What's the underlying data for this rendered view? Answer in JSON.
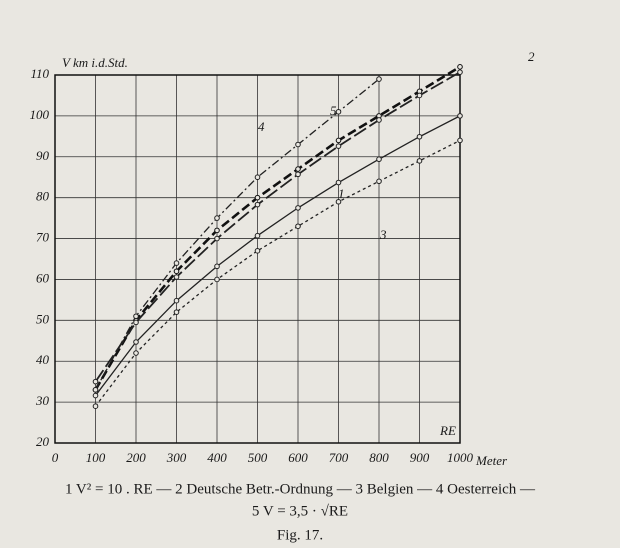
{
  "chart_data": {
    "type": "line",
    "ylabel": "V km i.d.Std.",
    "xlabel": "Meter",
    "xlabel2": "RE",
    "x": [
      100,
      200,
      300,
      400,
      500,
      600,
      700,
      800,
      900,
      1000
    ],
    "series": [
      {
        "name": "1",
        "color": "#222222",
        "style": "solid",
        "values": [
          31.6,
          44.7,
          54.8,
          63.2,
          70.7,
          77.5,
          83.7,
          89.4,
          94.9,
          100
        ]
      },
      {
        "name": "2",
        "color": "#111111",
        "style": "dashed",
        "values": [
          33,
          50,
          62,
          72,
          80,
          87,
          94,
          100,
          106,
          112
        ]
      },
      {
        "name": "3",
        "color": "#222222",
        "style": "dotted",
        "values": [
          29,
          42,
          52,
          60,
          67,
          73,
          79,
          84,
          89,
          94
        ]
      },
      {
        "name": "4",
        "color": "#222222",
        "style": "dashdot",
        "values": [
          33,
          51,
          64,
          75,
          85,
          93,
          101,
          109,
          null,
          null
        ]
      },
      {
        "name": "5",
        "color": "#222222",
        "style": "longdash",
        "values": [
          35,
          49.5,
          60.6,
          70,
          78.3,
          85.7,
          92.6,
          99,
          105,
          110.7
        ]
      }
    ],
    "xlim": [
      0,
      1000
    ],
    "ylim": [
      20,
      110
    ],
    "xticks": [
      0,
      100,
      200,
      300,
      400,
      500,
      600,
      700,
      800,
      900,
      1000
    ],
    "yticks": [
      20,
      30,
      40,
      50,
      60,
      70,
      80,
      90,
      100,
      110
    ],
    "grid": true,
    "caption": "1 V² = 10 . RE — 2 Deutsche Betr.-Ordnung — 3 Belgien — 4 Oesterreich —",
    "caption2": "5 V = 3,5 · √RE",
    "figure": "Fig. 17."
  }
}
